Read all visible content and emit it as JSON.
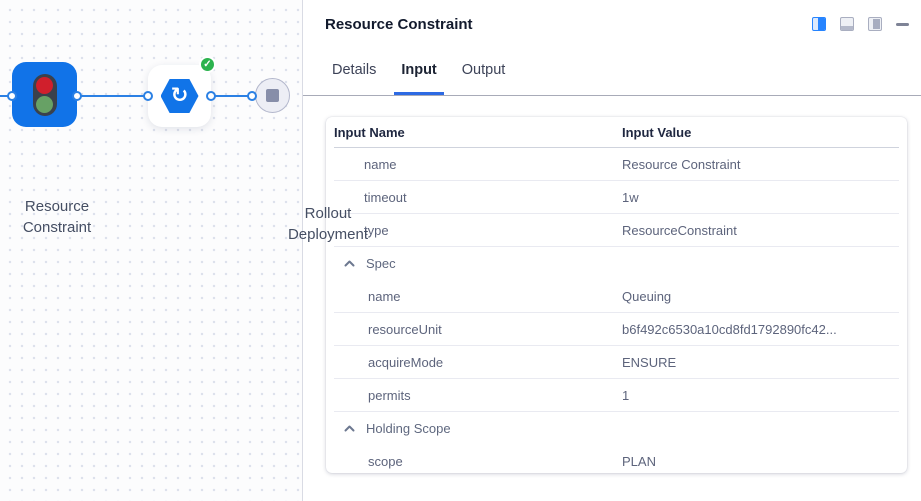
{
  "canvas": {
    "nodes": [
      {
        "id": "resource-constraint",
        "label": "Resource Constraint",
        "icon": "traffic-light-icon",
        "color": "#1173e8"
      },
      {
        "id": "rollout-deployment",
        "label": "Rollout Deployment",
        "icon": "rollout-icon",
        "status": "success"
      }
    ],
    "end_node": {
      "icon": "stop-square-icon"
    },
    "edge_color": "#2b80e4"
  },
  "panel": {
    "title": "Resource Constraint",
    "controls": [
      "dock-split-icon",
      "dock-bottom-icon",
      "dock-right-icon",
      "minimize-icon"
    ],
    "tabs": [
      {
        "label": "Details",
        "active": false
      },
      {
        "label": "Input",
        "active": true
      },
      {
        "label": "Output",
        "active": false
      }
    ],
    "table": {
      "columns": [
        "Input Name",
        "Input Value"
      ],
      "rows": [
        {
          "name": "name",
          "value": "Resource Constraint",
          "kind": "row",
          "level": 1
        },
        {
          "name": "timeout",
          "value": "1w",
          "kind": "row",
          "level": 1
        },
        {
          "name": "type",
          "value": "ResourceConstraint",
          "kind": "row",
          "level": 1
        },
        {
          "name": "Spec",
          "value": "",
          "kind": "section",
          "collapsed": false
        },
        {
          "name": "name",
          "value": "Queuing",
          "kind": "row",
          "level": 2
        },
        {
          "name": "resourceUnit",
          "value": "b6f492c6530a10cd8fd1792890fc42...",
          "kind": "row",
          "level": 2
        },
        {
          "name": "acquireMode",
          "value": "ENSURE",
          "kind": "row",
          "level": 2
        },
        {
          "name": "permits",
          "value": "1",
          "kind": "row",
          "level": 2
        },
        {
          "name": "Holding Scope",
          "value": "",
          "kind": "section",
          "collapsed": false
        },
        {
          "name": "scope",
          "value": "PLAN",
          "kind": "row",
          "level": 2
        }
      ]
    }
  },
  "colors": {
    "accent_blue": "#2684ff",
    "tab_underline": "#2d6ae3",
    "node_blue": "#1173e8",
    "edge_blue": "#2b80e4",
    "success_green": "#2cb34e",
    "traffic_red": "#d01f2c",
    "traffic_green": "#67a165"
  },
  "status": {
    "rollout_deployment": "success",
    "check_glyph": "✓",
    "rollout_glyph": "↻"
  }
}
